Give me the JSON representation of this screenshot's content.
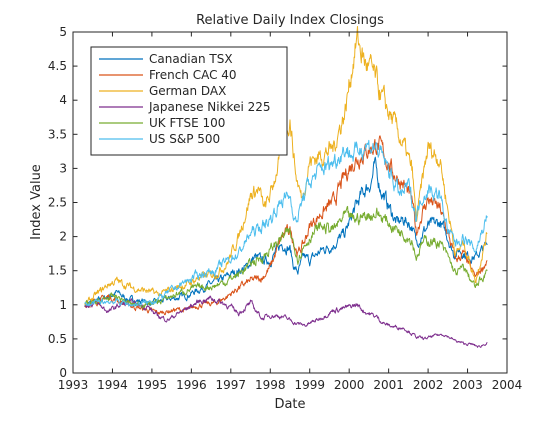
{
  "chart_data": {
    "type": "line",
    "title": "Relative Daily Index Closings",
    "xlabel": "Date",
    "ylabel": "Index Value",
    "xlim": [
      1993,
      2004
    ],
    "ylim": [
      0,
      5
    ],
    "x_ticks": [
      1993,
      1994,
      1995,
      1996,
      1997,
      1998,
      1999,
      2000,
      2001,
      2002,
      2003,
      2004
    ],
    "x_tick_labels": [
      "1993",
      "1994",
      "1995",
      "1996",
      "1997",
      "1998",
      "1999",
      "2000",
      "2001",
      "2002",
      "2003",
      "2004"
    ],
    "y_ticks": [
      0,
      0.5,
      1,
      1.5,
      2,
      2.5,
      3,
      3.5,
      4,
      4.5,
      5
    ],
    "y_tick_labels": [
      "0",
      "0.5",
      "1",
      "1.5",
      "2",
      "2.5",
      "3",
      "3.5",
      "4",
      "4.5",
      "5"
    ],
    "grid": false,
    "legend_position": "top-left",
    "series": [
      {
        "name": "Canadian TSX",
        "color": "#0072BD",
        "points": [
          [
            1993.3,
            1.0
          ],
          [
            1993.6,
            1.05
          ],
          [
            1993.9,
            1.12
          ],
          [
            1994.1,
            1.18
          ],
          [
            1994.4,
            1.08
          ],
          [
            1994.8,
            1.05
          ],
          [
            1995.0,
            1.02
          ],
          [
            1995.4,
            1.08
          ],
          [
            1995.8,
            1.12
          ],
          [
            1996.0,
            1.17
          ],
          [
            1996.4,
            1.28
          ],
          [
            1996.8,
            1.38
          ],
          [
            1997.0,
            1.45
          ],
          [
            1997.4,
            1.55
          ],
          [
            1997.6,
            1.7
          ],
          [
            1997.8,
            1.65
          ],
          [
            1998.0,
            1.65
          ],
          [
            1998.3,
            1.9
          ],
          [
            1998.5,
            1.82
          ],
          [
            1998.6,
            1.55
          ],
          [
            1998.7,
            1.48
          ],
          [
            1998.85,
            1.7
          ],
          [
            1999.0,
            1.65
          ],
          [
            1999.3,
            1.8
          ],
          [
            1999.6,
            1.88
          ],
          [
            1999.9,
            2.05
          ],
          [
            2000.1,
            2.35
          ],
          [
            2000.3,
            2.6
          ],
          [
            2000.55,
            2.8
          ],
          [
            2000.65,
            3.02
          ],
          [
            2000.8,
            2.7
          ],
          [
            2001.0,
            2.45
          ],
          [
            2001.2,
            2.2
          ],
          [
            2001.4,
            2.25
          ],
          [
            2001.6,
            2.15
          ],
          [
            2001.7,
            1.9
          ],
          [
            2001.85,
            2.05
          ],
          [
            2002.0,
            2.15
          ],
          [
            2002.3,
            2.2
          ],
          [
            2002.5,
            2.0
          ],
          [
            2002.65,
            1.75
          ],
          [
            2002.8,
            1.8
          ],
          [
            2003.0,
            1.72
          ],
          [
            2003.2,
            1.7
          ],
          [
            2003.5,
            1.88
          ]
        ]
      },
      {
        "name": "French CAC 40",
        "color": "#D95319",
        "points": [
          [
            1993.3,
            1.0
          ],
          [
            1993.6,
            1.05
          ],
          [
            1993.9,
            1.12
          ],
          [
            1994.1,
            1.07
          ],
          [
            1994.5,
            0.98
          ],
          [
            1994.9,
            0.92
          ],
          [
            1995.2,
            0.88
          ],
          [
            1995.6,
            0.93
          ],
          [
            1995.9,
            0.92
          ],
          [
            1996.2,
            1.0
          ],
          [
            1996.6,
            1.02
          ],
          [
            1996.9,
            1.12
          ],
          [
            1997.2,
            1.25
          ],
          [
            1997.5,
            1.35
          ],
          [
            1997.8,
            1.4
          ],
          [
            1998.0,
            1.55
          ],
          [
            1998.3,
            2.0
          ],
          [
            1998.5,
            2.1
          ],
          [
            1998.7,
            1.75
          ],
          [
            1998.85,
            1.9
          ],
          [
            1999.0,
            2.15
          ],
          [
            1999.3,
            2.35
          ],
          [
            1999.6,
            2.5
          ],
          [
            1999.9,
            2.9
          ],
          [
            2000.1,
            3.1
          ],
          [
            2000.4,
            3.25
          ],
          [
            2000.7,
            3.35
          ],
          [
            2000.9,
            3.2
          ],
          [
            2001.1,
            2.95
          ],
          [
            2001.4,
            2.75
          ],
          [
            2001.6,
            2.5
          ],
          [
            2001.7,
            2.05
          ],
          [
            2001.85,
            2.35
          ],
          [
            2002.0,
            2.55
          ],
          [
            2002.3,
            2.4
          ],
          [
            2002.5,
            2.05
          ],
          [
            2002.7,
            1.65
          ],
          [
            2002.9,
            1.75
          ],
          [
            2003.1,
            1.5
          ],
          [
            2003.2,
            1.4
          ],
          [
            2003.5,
            1.65
          ]
        ]
      },
      {
        "name": "German DAX",
        "color": "#EDB120",
        "points": [
          [
            1993.3,
            1.0
          ],
          [
            1993.6,
            1.15
          ],
          [
            1993.9,
            1.3
          ],
          [
            1994.1,
            1.35
          ],
          [
            1994.5,
            1.25
          ],
          [
            1994.9,
            1.2
          ],
          [
            1995.2,
            1.15
          ],
          [
            1995.6,
            1.25
          ],
          [
            1995.9,
            1.3
          ],
          [
            1996.2,
            1.4
          ],
          [
            1996.6,
            1.45
          ],
          [
            1996.9,
            1.6
          ],
          [
            1997.2,
            2.0
          ],
          [
            1997.5,
            2.6
          ],
          [
            1997.7,
            2.7
          ],
          [
            1997.85,
            2.4
          ],
          [
            1998.0,
            2.6
          ],
          [
            1998.3,
            3.3
          ],
          [
            1998.5,
            3.75
          ],
          [
            1998.65,
            2.9
          ],
          [
            1998.8,
            2.55
          ],
          [
            1999.0,
            3.1
          ],
          [
            1999.3,
            3.2
          ],
          [
            1999.6,
            3.3
          ],
          [
            1999.9,
            3.85
          ],
          [
            2000.1,
            4.6
          ],
          [
            2000.2,
            4.9
          ],
          [
            2000.4,
            4.55
          ],
          [
            2000.6,
            4.4
          ],
          [
            2000.85,
            4.0
          ],
          [
            2001.1,
            3.7
          ],
          [
            2001.4,
            3.3
          ],
          [
            2001.6,
            2.95
          ],
          [
            2001.7,
            2.2
          ],
          [
            2001.85,
            2.8
          ],
          [
            2002.0,
            3.3
          ],
          [
            2002.3,
            3.15
          ],
          [
            2002.5,
            2.4
          ],
          [
            2002.7,
            1.75
          ],
          [
            2002.9,
            1.9
          ],
          [
            2003.1,
            1.55
          ],
          [
            2003.2,
            1.35
          ],
          [
            2003.5,
            2.05
          ]
        ]
      },
      {
        "name": "Japanese Nikkei 225",
        "color": "#7E2F8E",
        "points": [
          [
            1993.3,
            1.0
          ],
          [
            1993.6,
            1.02
          ],
          [
            1993.9,
            0.9
          ],
          [
            1994.2,
            1.0
          ],
          [
            1994.5,
            1.02
          ],
          [
            1994.9,
            0.97
          ],
          [
            1995.1,
            0.85
          ],
          [
            1995.4,
            0.78
          ],
          [
            1995.6,
            0.85
          ],
          [
            1995.9,
            0.95
          ],
          [
            1996.2,
            1.05
          ],
          [
            1996.5,
            1.1
          ],
          [
            1996.9,
            1.0
          ],
          [
            1997.2,
            0.88
          ],
          [
            1997.5,
            1.02
          ],
          [
            1997.8,
            0.8
          ],
          [
            1998.0,
            0.85
          ],
          [
            1998.3,
            0.83
          ],
          [
            1998.7,
            0.72
          ],
          [
            1998.9,
            0.7
          ],
          [
            1999.2,
            0.78
          ],
          [
            1999.6,
            0.92
          ],
          [
            1999.9,
            0.95
          ],
          [
            2000.2,
            1.0
          ],
          [
            2000.4,
            0.9
          ],
          [
            2000.7,
            0.82
          ],
          [
            2000.9,
            0.72
          ],
          [
            2001.1,
            0.68
          ],
          [
            2001.4,
            0.66
          ],
          [
            2001.7,
            0.53
          ],
          [
            2001.9,
            0.5
          ],
          [
            2002.2,
            0.55
          ],
          [
            2002.4,
            0.57
          ],
          [
            2002.7,
            0.47
          ],
          [
            2002.9,
            0.43
          ],
          [
            2003.1,
            0.42
          ],
          [
            2003.3,
            0.38
          ],
          [
            2003.5,
            0.45
          ]
        ]
      },
      {
        "name": "UK FTSE 100",
        "color": "#77AC30",
        "points": [
          [
            1993.3,
            1.0
          ],
          [
            1993.6,
            1.03
          ],
          [
            1993.9,
            1.1
          ],
          [
            1994.1,
            1.12
          ],
          [
            1994.5,
            1.0
          ],
          [
            1994.9,
            1.02
          ],
          [
            1995.2,
            1.05
          ],
          [
            1995.6,
            1.15
          ],
          [
            1995.9,
            1.22
          ],
          [
            1996.2,
            1.25
          ],
          [
            1996.6,
            1.28
          ],
          [
            1996.9,
            1.35
          ],
          [
            1997.2,
            1.45
          ],
          [
            1997.5,
            1.6
          ],
          [
            1997.8,
            1.7
          ],
          [
            1998.0,
            1.8
          ],
          [
            1998.3,
            2.0
          ],
          [
            1998.5,
            2.05
          ],
          [
            1998.7,
            1.7
          ],
          [
            1998.85,
            1.85
          ],
          [
            1999.0,
            2.0
          ],
          [
            1999.3,
            2.15
          ],
          [
            1999.6,
            2.1
          ],
          [
            1999.9,
            2.3
          ],
          [
            2000.1,
            2.25
          ],
          [
            2000.4,
            2.3
          ],
          [
            2000.7,
            2.35
          ],
          [
            2000.9,
            2.25
          ],
          [
            2001.1,
            2.15
          ],
          [
            2001.4,
            2.05
          ],
          [
            2001.6,
            1.95
          ],
          [
            2001.7,
            1.7
          ],
          [
            2001.85,
            1.9
          ],
          [
            2002.0,
            1.95
          ],
          [
            2002.3,
            1.9
          ],
          [
            2002.5,
            1.7
          ],
          [
            2002.7,
            1.45
          ],
          [
            2002.9,
            1.55
          ],
          [
            2003.1,
            1.35
          ],
          [
            2003.2,
            1.25
          ],
          [
            2003.5,
            1.5
          ]
        ]
      },
      {
        "name": "US S&P 500",
        "color": "#4DBEEE",
        "points": [
          [
            1993.3,
            1.0
          ],
          [
            1993.6,
            1.03
          ],
          [
            1993.9,
            1.05
          ],
          [
            1994.1,
            1.05
          ],
          [
            1994.5,
            1.0
          ],
          [
            1994.9,
            1.03
          ],
          [
            1995.2,
            1.1
          ],
          [
            1995.6,
            1.25
          ],
          [
            1995.9,
            1.35
          ],
          [
            1996.2,
            1.45
          ],
          [
            1996.6,
            1.5
          ],
          [
            1996.9,
            1.65
          ],
          [
            1997.2,
            1.75
          ],
          [
            1997.5,
            2.05
          ],
          [
            1997.8,
            2.15
          ],
          [
            1998.0,
            2.25
          ],
          [
            1998.3,
            2.55
          ],
          [
            1998.5,
            2.6
          ],
          [
            1998.65,
            2.2
          ],
          [
            1998.85,
            2.6
          ],
          [
            1999.0,
            2.8
          ],
          [
            1999.3,
            3.0
          ],
          [
            1999.6,
            3.1
          ],
          [
            1999.9,
            3.3
          ],
          [
            2000.1,
            3.2
          ],
          [
            2000.4,
            3.35
          ],
          [
            2000.7,
            3.3
          ],
          [
            2000.9,
            3.1
          ],
          [
            2001.1,
            2.85
          ],
          [
            2001.3,
            2.6
          ],
          [
            2001.5,
            2.75
          ],
          [
            2001.7,
            2.3
          ],
          [
            2001.85,
            2.6
          ],
          [
            2002.0,
            2.7
          ],
          [
            2002.3,
            2.6
          ],
          [
            2002.5,
            2.1
          ],
          [
            2002.7,
            1.9
          ],
          [
            2002.9,
            2.0
          ],
          [
            2003.1,
            1.85
          ],
          [
            2003.2,
            1.8
          ],
          [
            2003.5,
            2.3
          ]
        ]
      }
    ]
  }
}
